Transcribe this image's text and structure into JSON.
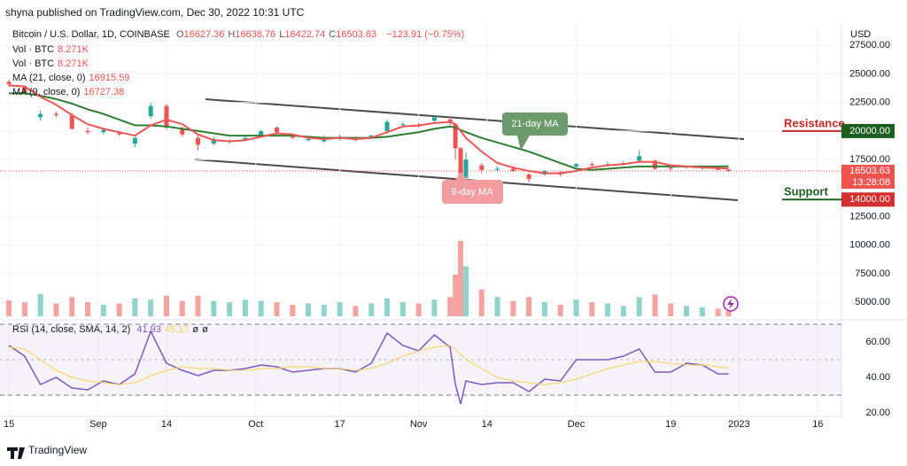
{
  "header": {
    "published": "shyna published on TradingView.com, Dec 30, 2022 10:31 UTC",
    "symbol": "Bitcoin / U.S. Dollar, 1D, COINBASE",
    "ohlc": [
      {
        "label": "O",
        "value": "16627.36"
      },
      {
        "label": "H",
        "value": "16638.76"
      },
      {
        "label": "L",
        "value": "16422.74"
      },
      {
        "label": "C",
        "value": "16503.63"
      }
    ],
    "change": "−123.91 (−0.75%)",
    "indicators": [
      {
        "name": "Vol · BTC",
        "value": "8.271K"
      },
      {
        "name": "Vol · BTC",
        "value": "8.271K"
      },
      {
        "name": "MA (21, close, 0)",
        "value": "16915.59"
      },
      {
        "name": "MA (9, close, 0)",
        "value": "16727.38"
      }
    ],
    "rsi_legend": {
      "name": "RSI (14, close, SMA, 14, 2)",
      "values": [
        "41.93",
        "45.17",
        "ø",
        "ø"
      ]
    },
    "currency": "USD"
  },
  "footer": "TradingView",
  "chart_data": [
    {
      "type": "candlestick",
      "up_color": "#26a69a",
      "down_color": "#ef5350",
      "x": [
        0,
        3,
        6,
        9,
        12,
        15,
        18,
        21,
        24,
        27,
        30,
        33,
        36,
        39,
        42,
        45,
        48,
        51,
        54,
        57,
        60,
        63,
        66,
        69,
        72,
        75,
        78,
        81,
        84,
        85,
        86,
        87,
        90,
        93,
        96,
        99,
        102,
        105,
        108,
        111,
        114,
        117,
        120,
        123,
        126,
        129,
        132,
        135,
        137
      ],
      "open": [
        24300,
        23900,
        21200,
        21500,
        21400,
        20000,
        19900,
        19800,
        18900,
        21300,
        22200,
        20200,
        19400,
        18900,
        19100,
        19200,
        19600,
        20300,
        19500,
        19200,
        19100,
        19300,
        19300,
        19400,
        20000,
        20600,
        20500,
        20900,
        21000,
        20600,
        18500,
        15900,
        17000,
        16600,
        16700,
        16200,
        16200,
        16400,
        16900,
        17100,
        17000,
        17100,
        17400,
        17400,
        16800,
        16800,
        16800,
        16700,
        16627.36
      ],
      "high": [
        24500,
        24000,
        21800,
        21700,
        21600,
        20300,
        20300,
        20000,
        19500,
        22500,
        22400,
        20400,
        19600,
        19500,
        19300,
        19600,
        20100,
        20400,
        19600,
        19500,
        19600,
        19700,
        19500,
        19700,
        21000,
        20800,
        20700,
        21400,
        21200,
        20700,
        18600,
        18100,
        17200,
        16900,
        16900,
        16300,
        16600,
        16500,
        17200,
        17300,
        17300,
        17400,
        18300,
        17500,
        16900,
        17000,
        16900,
        16800,
        16638.76
      ],
      "low": [
        23900,
        23200,
        20900,
        21200,
        20100,
        19700,
        19700,
        19600,
        18600,
        21100,
        20100,
        19500,
        18300,
        18800,
        18900,
        19100,
        19500,
        19800,
        19300,
        19100,
        19000,
        19200,
        19100,
        19300,
        19900,
        20400,
        20300,
        20800,
        20500,
        17500,
        15600,
        15800,
        16300,
        16400,
        16400,
        15500,
        16100,
        16000,
        16800,
        16900,
        16900,
        17000,
        17300,
        16600,
        16500,
        16700,
        16600,
        16500,
        16422.74
      ],
      "close": [
        24100,
        23300,
        21500,
        21400,
        20200,
        19900,
        20100,
        19700,
        19400,
        22200,
        20300,
        19700,
        18800,
        19300,
        19100,
        19400,
        20000,
        19900,
        19400,
        19300,
        19400,
        19500,
        19200,
        19600,
        20800,
        20600,
        20400,
        21200,
        20700,
        18500,
        15900,
        17500,
        16600,
        16700,
        16500,
        15800,
        16500,
        16200,
        17100,
        17000,
        17100,
        17200,
        17800,
        16700,
        16700,
        16900,
        16800,
        16600,
        16503.63
      ],
      "series": [
        {
          "name": "MA (21, close, 0)",
          "color": "#2e7d32",
          "values": [
            23300,
            23300,
            23100,
            22800,
            22400,
            21900,
            21500,
            21000,
            20500,
            20500,
            20400,
            20200,
            20000,
            19800,
            19600,
            19600,
            19600,
            19600,
            19600,
            19500,
            19400,
            19400,
            19400,
            19400,
            19500,
            19700,
            19900,
            20200,
            20400,
            20300,
            20100,
            19900,
            19400,
            19000,
            18600,
            18200,
            17700,
            17200,
            16700,
            16600,
            16700,
            16800,
            16900,
            16900,
            16900,
            16900,
            16900,
            16900,
            16915.59
          ]
        },
        {
          "name": "MA (9, close, 0)",
          "color": "#f05454",
          "values": [
            24000,
            23900,
            23000,
            22300,
            21400,
            20600,
            20200,
            19900,
            19600,
            20500,
            21000,
            20600,
            19700,
            19200,
            19100,
            19200,
            19500,
            19800,
            19700,
            19400,
            19300,
            19400,
            19300,
            19400,
            19900,
            20400,
            20500,
            20700,
            20800,
            20600,
            20000,
            19400,
            18200,
            17200,
            16800,
            16500,
            16300,
            16300,
            16500,
            16800,
            17000,
            17100,
            17300,
            17300,
            17000,
            16900,
            16800,
            16750,
            16727.38
          ]
        }
      ],
      "xlim": [
        -1.7,
        158.5
      ],
      "xticks": [
        {
          "value": 0,
          "label": "15"
        },
        {
          "value": 17,
          "label": "Sep"
        },
        {
          "value": 30,
          "label": "14"
        },
        {
          "value": 47,
          "label": "Oct"
        },
        {
          "value": 63,
          "label": "17"
        },
        {
          "value": 78,
          "label": "Nov"
        },
        {
          "value": 91,
          "label": "14"
        },
        {
          "value": 108,
          "label": "Dec"
        },
        {
          "value": 126,
          "label": "19"
        },
        {
          "value": 139,
          "label": "2023"
        },
        {
          "value": 154,
          "label": "16"
        }
      ],
      "ylim": [
        3700,
        29150
      ],
      "yticks": [
        {
          "value": 27500,
          "label": "27500.00"
        },
        {
          "value": 25000,
          "label": "25000.00"
        },
        {
          "value": 22500,
          "label": "22500.00"
        },
        {
          "value": 20000,
          "label": "20000.00"
        },
        {
          "value": 17500,
          "label": "17500.00"
        },
        {
          "value": 12500,
          "label": "12500.00"
        },
        {
          "value": 10000,
          "label": "10000.00"
        },
        {
          "value": 7500,
          "label": "7500.00"
        },
        {
          "value": 5000,
          "label": "5000.00"
        }
      ],
      "last_label": "16503.63",
      "countdown": "13:28:08",
      "levels": [
        {
          "name": "Resistance",
          "value": 20000,
          "label": "20000.00",
          "text_color": "#c62828",
          "box_color": "#1b5e20"
        },
        {
          "name": "Support",
          "value": 14000,
          "label": "14000.00",
          "text_color": "#1b5e20",
          "box_color": "#d32f2f"
        }
      ],
      "annotations": [
        {
          "text": "21-day MA",
          "color": "#6b9a6d"
        },
        {
          "text": "9-day MA",
          "color": "#f29ca0"
        }
      ]
    },
    {
      "type": "bar",
      "up_color": "#8fd3cb",
      "down_color": "#f5a3a1",
      "values": [
        25,
        22,
        35,
        20,
        30,
        22,
        18,
        20,
        28,
        26,
        32,
        24,
        32,
        24,
        22,
        26,
        24,
        22,
        18,
        20,
        18,
        22,
        16,
        20,
        28,
        22,
        20,
        26,
        30,
        65,
        118,
        78,
        42,
        30,
        24,
        30,
        22,
        18,
        26,
        22,
        20,
        16,
        30,
        34,
        20,
        16,
        14,
        12,
        8.271
      ],
      "ylim": [
        0,
        130
      ]
    },
    {
      "type": "line",
      "series": [
        {
          "name": "RSI (14, close, SMA, 14, 2)",
          "color": "#7e57c2",
          "values": [
            58,
            52,
            36,
            40,
            34,
            33,
            38,
            36,
            42,
            66,
            48,
            44,
            41,
            44,
            44,
            45,
            47,
            46,
            43,
            44,
            45,
            45,
            43,
            48,
            65,
            58,
            55,
            64,
            57,
            36,
            25,
            38,
            36,
            37,
            37,
            32,
            39,
            38,
            50,
            50,
            50,
            52,
            56,
            43,
            43,
            48,
            47,
            42,
            41.93
          ]
        },
        {
          "color": "#f7d154",
          "values": [
            57,
            56,
            50,
            44,
            40,
            38,
            37,
            36,
            37,
            41,
            44,
            46,
            45,
            45,
            44,
            44,
            45,
            45,
            46,
            46,
            45,
            45,
            44,
            45,
            48,
            52,
            55,
            57,
            58,
            56,
            53,
            50,
            45,
            40,
            38,
            37,
            36,
            37,
            39,
            42,
            45,
            47,
            49,
            49,
            48,
            47,
            47,
            46,
            45.17
          ]
        }
      ],
      "ylim": [
        19,
        70.5
      ],
      "yticks": [
        {
          "value": 60,
          "label": "60.00"
        },
        {
          "value": 40,
          "label": "40.00"
        },
        {
          "value": 20,
          "label": "20.00"
        }
      ],
      "bands": [
        70,
        30
      ],
      "midline": 50,
      "band_color": "#7e57c2"
    }
  ]
}
